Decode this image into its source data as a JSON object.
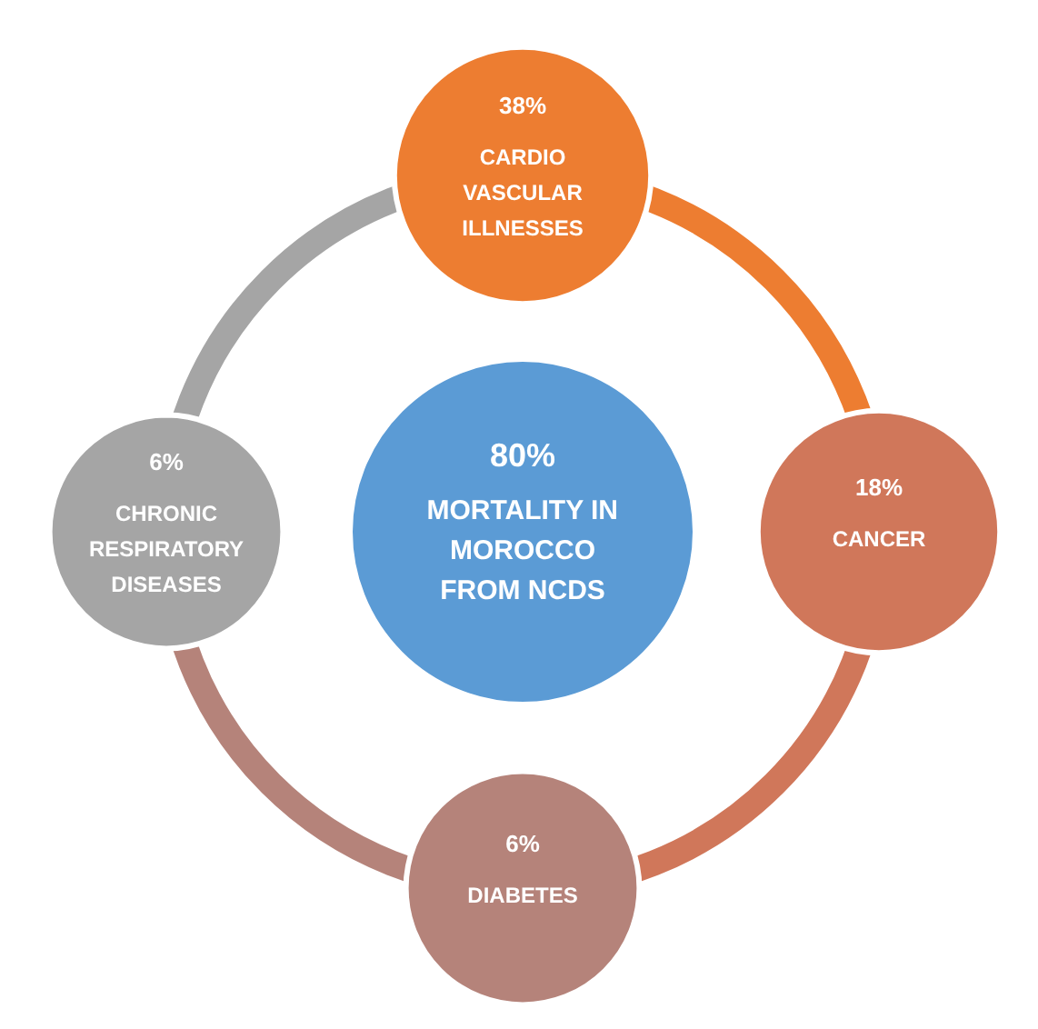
{
  "chart_data": {
    "type": "other",
    "categories": [
      "CARDIO\nVASCULAR\nILLNESSES",
      "CANCER",
      "DIABETES",
      "CHRONIC\nRESPIRATORY\nDISEASES"
    ],
    "values": [
      38,
      18,
      6,
      6
    ],
    "value_labels": [
      "38%",
      "18%",
      "6%",
      "6%"
    ],
    "colors": [
      "#ed7d31",
      "#d0775a",
      "#b5837a",
      "#a5a5a5"
    ],
    "annotations": [
      "80%",
      "MORTALITY IN\nMOROCCO\nFROM NCDS"
    ]
  }
}
